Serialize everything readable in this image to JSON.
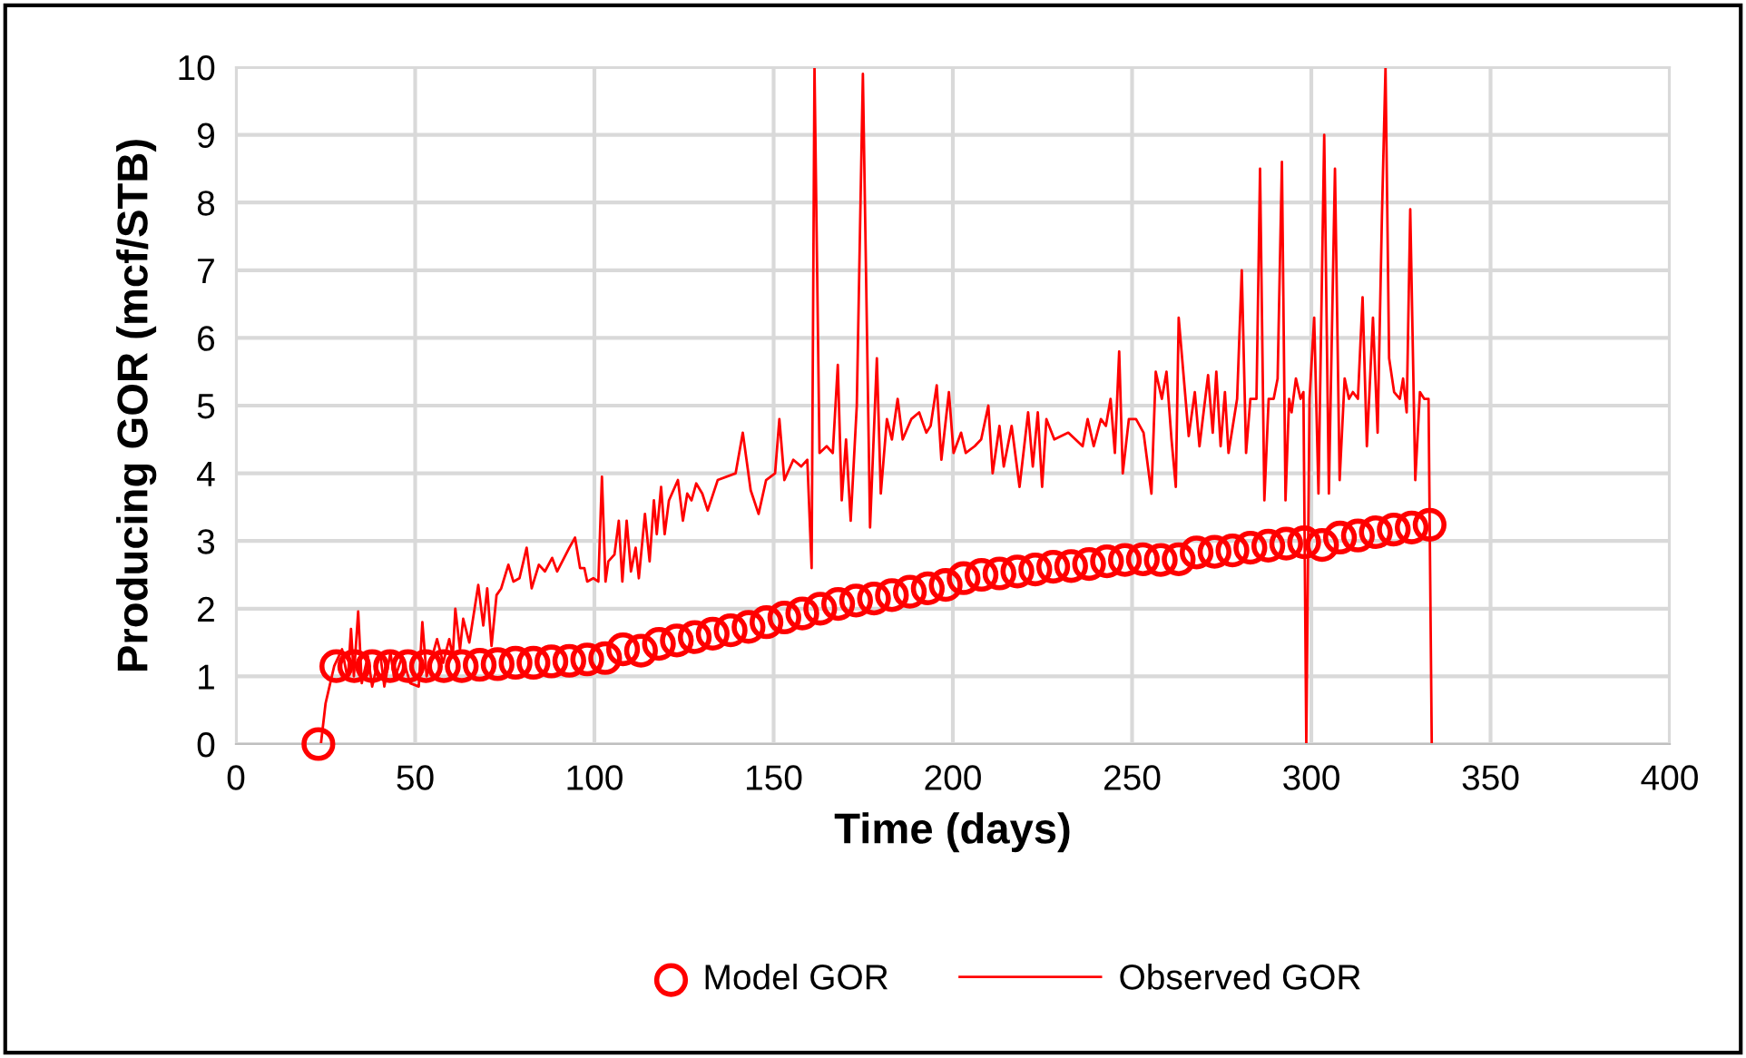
{
  "chart_data": {
    "type": "line",
    "xlabel": "Time (days)",
    "ylabel": "Producing GOR (mcf/STB)",
    "xlim": [
      0,
      400
    ],
    "xticks": [
      0,
      50,
      100,
      150,
      200,
      250,
      300,
      350,
      400
    ],
    "ylim": [
      0,
      10
    ],
    "yticks": [
      0,
      1,
      2,
      3,
      4,
      5,
      6,
      7,
      8,
      9,
      10
    ],
    "grid": true,
    "legend": "bottom",
    "series": [
      {
        "name": "Model GOR",
        "type": "scatter",
        "marker": "circle",
        "color": "#ff0000",
        "x": [
          23,
          28,
          33,
          38,
          43,
          48,
          53,
          58,
          63,
          68,
          73,
          78,
          83,
          88,
          93,
          98,
          103,
          108,
          113,
          118,
          123,
          128,
          133,
          138,
          143,
          148,
          153,
          158,
          163,
          168,
          173,
          178,
          183,
          188,
          193,
          198,
          203,
          208,
          213,
          218,
          223,
          228,
          233,
          238,
          243,
          248,
          253,
          258,
          263,
          268,
          273,
          278,
          283,
          288,
          293,
          298,
          303,
          308,
          313,
          318,
          323,
          328,
          333
        ],
        "values": [
          0,
          1.15,
          1.15,
          1.15,
          1.15,
          1.15,
          1.15,
          1.15,
          1.15,
          1.17,
          1.18,
          1.2,
          1.2,
          1.22,
          1.23,
          1.25,
          1.27,
          1.4,
          1.38,
          1.48,
          1.53,
          1.58,
          1.63,
          1.68,
          1.73,
          1.8,
          1.87,
          1.93,
          2.0,
          2.07,
          2.12,
          2.15,
          2.2,
          2.25,
          2.3,
          2.35,
          2.45,
          2.5,
          2.52,
          2.55,
          2.58,
          2.62,
          2.63,
          2.66,
          2.7,
          2.72,
          2.73,
          2.72,
          2.73,
          2.83,
          2.84,
          2.86,
          2.9,
          2.93,
          2.96,
          2.98,
          2.94,
          3.05,
          3.08,
          3.13,
          3.17,
          3.2,
          3.24
        ]
      },
      {
        "name": "Observed GOR",
        "marker": "none",
        "line_style": "solid",
        "color": "#ff0000",
        "x": [
          23.7,
          25.0,
          27.4,
          29.6,
          31.2,
          32.1,
          32.9,
          34.1,
          35.1,
          36.8,
          38.0,
          40.2,
          41.4,
          43.1,
          44.2,
          46.4,
          48.6,
          51.0,
          52.0,
          53.2,
          56.1,
          57.8,
          59.5,
          60.5,
          61.2,
          62.5,
          63.4,
          65.1,
          67.6,
          69.0,
          70.1,
          71.3,
          72.7,
          74.0,
          76.0,
          77.4,
          79.1,
          81.1,
          82.5,
          84.5,
          86.2,
          88.2,
          89.6,
          93.0,
          94.6,
          96.0,
          97.2,
          98.0,
          99.7,
          101.1,
          102.1,
          103.1,
          103.9,
          105.6,
          106.8,
          107.8,
          109.0,
          110.2,
          111.5,
          112.4,
          114.1,
          115.4,
          116.6,
          117.4,
          118.6,
          119.6,
          120.8,
          123.3,
          124.7,
          125.9,
          127.1,
          128.4,
          130.1,
          131.6,
          134.4,
          139.4,
          141.4,
          143.6,
          145.8,
          147.9,
          150.4,
          151.6,
          153.0,
          155.5,
          157.7,
          159.4,
          160.6,
          161.4,
          162.8,
          164.8,
          166.5,
          167.9,
          169.0,
          170.2,
          171.5,
          173.2,
          174.9,
          176.9,
          178.8,
          179.9,
          181.6,
          183.0,
          184.6,
          186.0,
          188.4,
          190.6,
          192.6,
          193.8,
          195.5,
          196.8,
          198.9,
          200.2,
          202.3,
          203.6,
          206.1,
          207.9,
          209.9,
          211.1,
          213.0,
          214.2,
          216.4,
          218.6,
          221.0,
          222.3,
          223.7,
          224.9,
          226.1,
          228.3,
          232.2,
          234.2,
          236.2,
          237.6,
          239.3,
          241.3,
          242.7,
          244.0,
          245.2,
          246.4,
          247.4,
          249.1,
          251.1,
          253.2,
          255.4,
          256.6,
          258.3,
          259.6,
          261.0,
          262.2,
          263.0,
          265.8,
          267.5,
          268.8,
          271.2,
          272.5,
          273.5,
          274.7,
          275.9,
          276.9,
          279.3,
          280.6,
          281.8,
          283.0,
          284.7,
          285.7,
          286.9,
          288.1,
          289.5,
          290.6,
          291.8,
          292.8,
          293.8,
          294.5,
          295.7,
          297.0,
          297.8,
          298.6,
          299.5,
          300.8,
          302.0,
          303.6,
          304.9,
          306.6,
          307.9,
          309.3,
          310.5,
          311.6,
          313.0,
          314.3,
          315.5,
          317.2,
          318.5,
          319.7,
          320.7,
          321.7,
          323.1,
          324.7,
          325.6,
          326.6,
          327.6,
          329.0,
          330.3,
          331.5,
          332.7,
          333.6
        ],
        "values": [
          0,
          0.6,
          1.15,
          1.4,
          0.95,
          1.7,
          1.0,
          1.96,
          0.9,
          1.3,
          0.85,
          1.35,
          0.85,
          1.35,
          0.95,
          1.3,
          0.9,
          0.85,
          1.8,
          1.0,
          1.55,
          1.2,
          1.55,
          1.3,
          2.0,
          1.4,
          1.85,
          1.5,
          2.35,
          1.75,
          2.3,
          1.45,
          2.2,
          2.3,
          2.65,
          2.4,
          2.45,
          2.9,
          2.3,
          2.65,
          2.55,
          2.75,
          2.55,
          2.9,
          3.05,
          2.6,
          2.6,
          2.4,
          2.45,
          2.4,
          3.95,
          2.4,
          2.7,
          2.8,
          3.3,
          2.4,
          3.3,
          2.55,
          2.9,
          2.45,
          3.4,
          2.7,
          3.6,
          3.1,
          3.8,
          3.1,
          3.6,
          3.9,
          3.3,
          3.7,
          3.6,
          3.85,
          3.7,
          3.45,
          3.9,
          4.0,
          4.6,
          3.75,
          3.4,
          3.9,
          4.0,
          4.8,
          3.9,
          4.2,
          4.1,
          4.2,
          2.6,
          10,
          4.3,
          4.4,
          4.3,
          5.6,
          3.6,
          4.5,
          3.3,
          5.0,
          9.9,
          3.2,
          5.7,
          3.7,
          4.8,
          4.5,
          5.1,
          4.5,
          4.8,
          4.9,
          4.6,
          4.7,
          5.3,
          4.2,
          5.2,
          4.3,
          4.6,
          4.3,
          4.4,
          4.5,
          5.0,
          4.0,
          4.7,
          4.1,
          4.7,
          3.8,
          4.9,
          4.1,
          4.9,
          3.8,
          4.8,
          4.5,
          4.6,
          4.5,
          4.4,
          4.8,
          4.4,
          4.8,
          4.7,
          5.1,
          4.3,
          5.8,
          4.0,
          4.8,
          4.8,
          4.6,
          3.7,
          5.5,
          5.1,
          5.5,
          4.5,
          3.8,
          6.3,
          4.55,
          5.2,
          4.4,
          5.45,
          4.6,
          5.5,
          4.4,
          5.2,
          4.3,
          5.1,
          7.0,
          4.3,
          5.1,
          5.1,
          8.5,
          3.6,
          5.1,
          5.1,
          5.4,
          8.6,
          3.6,
          5.1,
          4.9,
          5.4,
          5.1,
          5.2,
          0,
          5.1,
          6.3,
          3.7,
          9.0,
          3.7,
          8.5,
          3.9,
          5.4,
          5.1,
          5.2,
          5.1,
          6.6,
          4.4,
          6.3,
          4.6,
          7.8,
          10,
          5.7,
          5.2,
          5.1,
          5.4,
          4.9,
          7.9,
          3.9,
          5.2,
          5.1,
          5.1,
          0
        ]
      }
    ]
  }
}
